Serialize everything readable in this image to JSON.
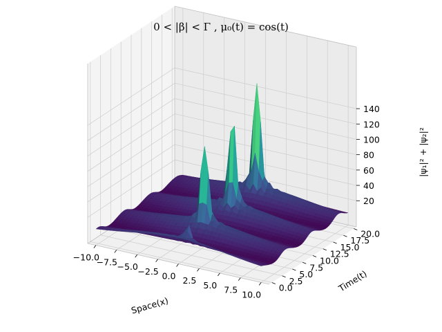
{
  "chart_data": {
    "type": "surface3d",
    "title": "0 < |β| < Γ ,  μ₀(t) = cos(t)",
    "xlabel": "Space(x)",
    "ylabel": "Time(t)",
    "zlabel": "|ψ₁|² + |ψ₂|²",
    "xlim": [
      -11,
      11
    ],
    "ylim": [
      0,
      20
    ],
    "zlim": [
      0,
      150
    ],
    "x_ticks": [
      "−10.0",
      "−7.5",
      "−5.0",
      "−2.5",
      "0.0",
      "2.5",
      "5.0",
      "7.5",
      "10.0"
    ],
    "y_ticks": [
      "0.0",
      "2.5",
      "5.0",
      "7.5",
      "10.0",
      "12.5",
      "15.0",
      "17.5",
      "20.0"
    ],
    "z_ticks": [
      "20",
      "40",
      "60",
      "80",
      "100",
      "120",
      "140"
    ],
    "colormap": "viridis",
    "background_ridge_height": 20,
    "peaks": [
      {
        "x": 0.0,
        "t": 6.0,
        "z": 115
      },
      {
        "x": 0.2,
        "t": 12.0,
        "z": 125
      },
      {
        "x": 0.0,
        "t": 18.0,
        "z": 150
      },
      {
        "x": 0.3,
        "t": 1.5,
        "z": 40
      }
    ],
    "grid": true,
    "colors": {
      "pane": "#f2f2f2",
      "grid": "#d0d0d0",
      "low": "#440154",
      "high": "#fde725"
    }
  }
}
